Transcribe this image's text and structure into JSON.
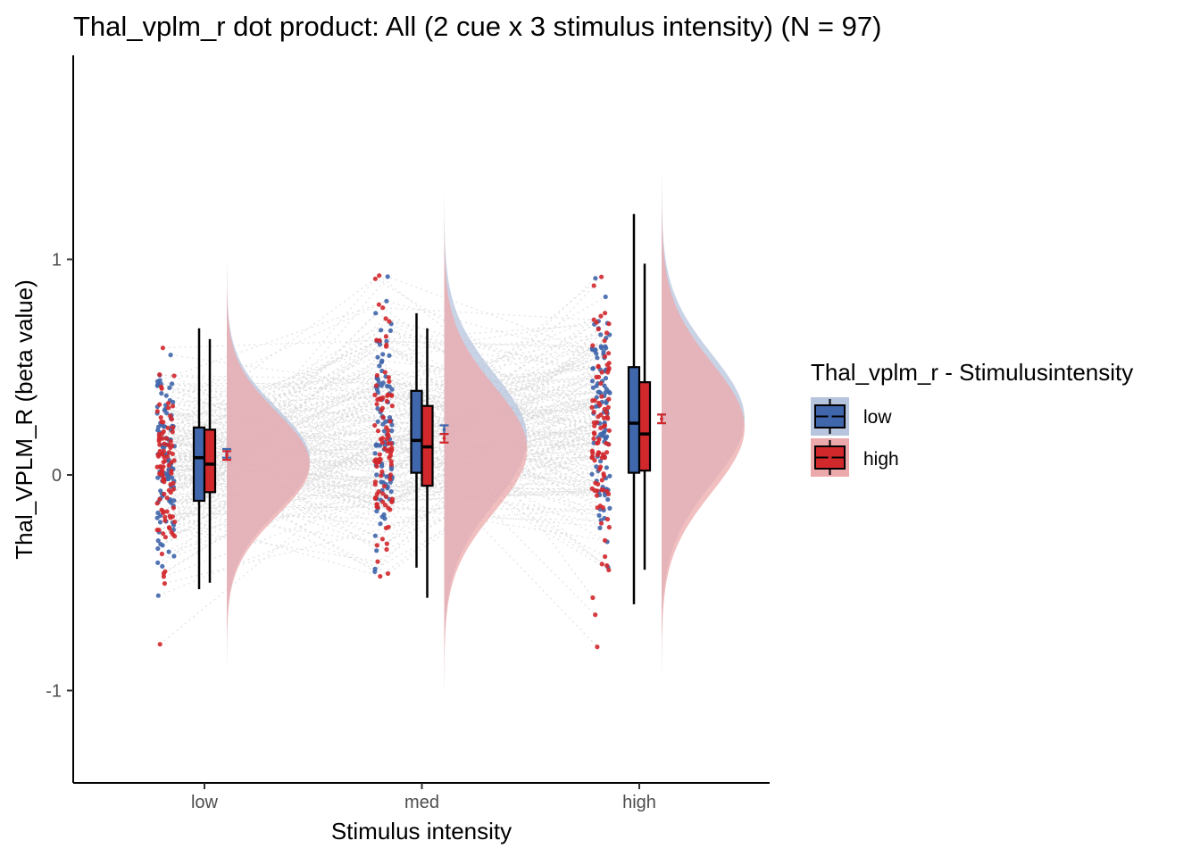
{
  "chart_data": {
    "type": "raincloud",
    "title": "Thal_vplm_r dot product: All (2 cue x 3 stimulus intensity) (N = 97)",
    "xlabel": "Stimulus intensity",
    "ylabel": "Thal_VPLM_R  (beta value)",
    "categories": [
      "low",
      "med",
      "high"
    ],
    "ylim": [
      -1.4,
      1.9
    ],
    "yticks": [
      -1,
      0,
      1
    ],
    "ytick_labels": [
      "-1",
      "0",
      "1"
    ],
    "grid": false,
    "legend": {
      "title": "Thal_vplm_r - Stimulusintensity",
      "position": "right",
      "entries": [
        "low",
        "high"
      ]
    },
    "colors": {
      "low": "#4066ab",
      "high": "#d1282c",
      "low_fill": "#b7c4dd",
      "high_fill": "#eca9ab",
      "connector": "#d9d9d9"
    },
    "n_subjects": 97,
    "series": [
      {
        "name": "low",
        "boxplot": [
          {
            "category": "low",
            "min": -0.53,
            "q1": -0.12,
            "median": 0.08,
            "q3": 0.22,
            "max": 0.68
          },
          {
            "category": "med",
            "min": -0.43,
            "q1": 0.01,
            "median": 0.16,
            "q3": 0.39,
            "max": 0.75
          },
          {
            "category": "high",
            "min": -0.6,
            "q1": 0.01,
            "median": 0.24,
            "q3": 0.5,
            "max": 1.21
          }
        ],
        "mean_se": [
          {
            "category": "low",
            "mean": 0.1,
            "se": 0.02
          },
          {
            "category": "med",
            "mean": 0.21,
            "se": 0.02
          },
          {
            "category": "high",
            "mean": 0.26,
            "se": 0.02
          }
        ],
        "density": [
          {
            "category": "low",
            "mu": 0.07,
            "sd": 0.24
          },
          {
            "category": "med",
            "mu": 0.17,
            "sd": 0.3
          },
          {
            "category": "high",
            "mu": 0.26,
            "sd": 0.3
          }
        ]
      },
      {
        "name": "high",
        "boxplot": [
          {
            "category": "low",
            "min": -0.5,
            "q1": -0.08,
            "median": 0.05,
            "q3": 0.21,
            "max": 0.63
          },
          {
            "category": "med",
            "min": -0.57,
            "q1": -0.05,
            "median": 0.13,
            "q3": 0.32,
            "max": 0.68
          },
          {
            "category": "high",
            "min": -0.44,
            "q1": 0.02,
            "median": 0.19,
            "q3": 0.43,
            "max": 0.98
          }
        ],
        "mean_se": [
          {
            "category": "low",
            "mean": 0.09,
            "se": 0.02
          },
          {
            "category": "med",
            "mean": 0.17,
            "se": 0.02
          },
          {
            "category": "high",
            "mean": 0.26,
            "se": 0.02
          }
        ],
        "density": [
          {
            "category": "low",
            "mu": 0.05,
            "sd": 0.24
          },
          {
            "category": "med",
            "mu": 0.12,
            "sd": 0.29
          },
          {
            "category": "high",
            "mu": 0.22,
            "sd": 0.3
          }
        ]
      }
    ]
  }
}
